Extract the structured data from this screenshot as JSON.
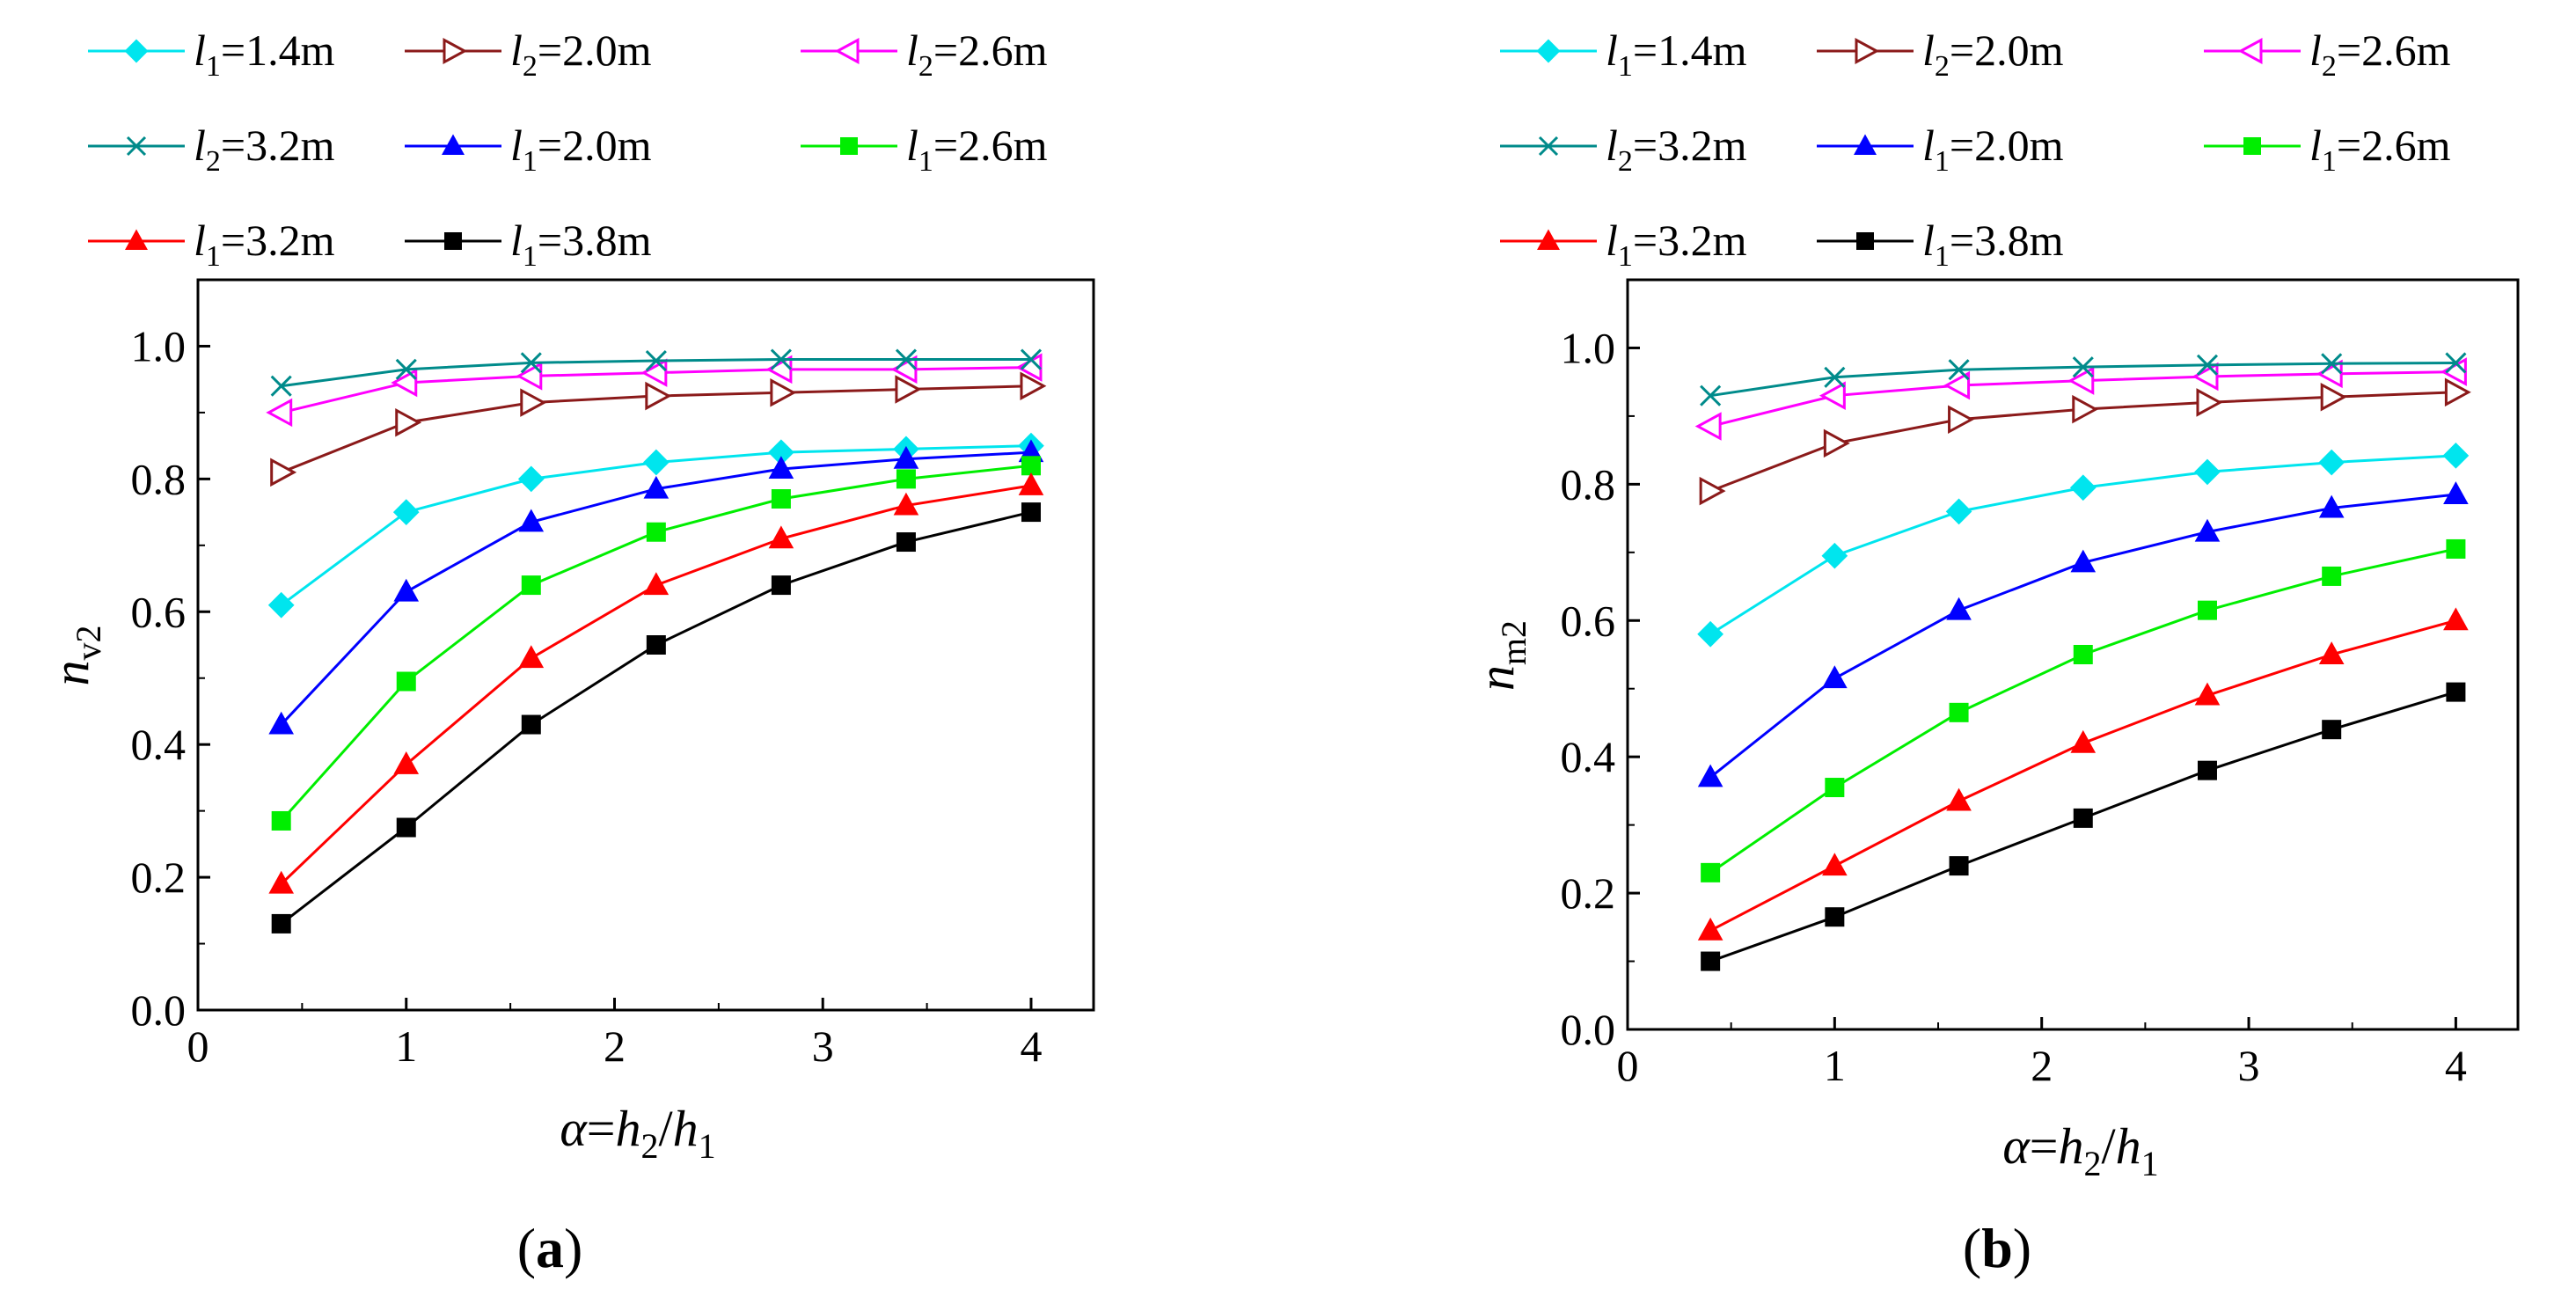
{
  "chart_data": [
    {
      "type": "line",
      "panel_label": "a",
      "xlabel": {
        "symbol": "α",
        "eq": "=",
        "num_var": "h",
        "num_sub": "2",
        "slash": "/",
        "den_var": "h",
        "den_sub": "1"
      },
      "ylabel": {
        "var": "n",
        "sub": "v2"
      },
      "xlim": [
        0,
        4.3
      ],
      "ylim": [
        0,
        1.1
      ],
      "xticks": [
        0,
        1,
        2,
        3,
        4
      ],
      "xtick_labels": [
        "0",
        "1",
        "2",
        "3",
        "4"
      ],
      "yticks": [
        0,
        0.2,
        0.4,
        0.6,
        0.8,
        1.0
      ],
      "ytick_labels": [
        "0.0",
        "0.2",
        "0.4",
        "0.6",
        "0.8",
        "1.0"
      ],
      "x": [
        0.4,
        1.0,
        1.6,
        2.2,
        2.8,
        3.4,
        4.0
      ],
      "series": [
        {
          "name": "l1=1.4m",
          "var": "l",
          "sub": "1",
          "value": "=1.4m",
          "color": "#00E5EE",
          "marker": "diamond",
          "values": [
            0.61,
            0.75,
            0.8,
            0.825,
            0.84,
            0.845,
            0.85
          ]
        },
        {
          "name": "l2=2.0m",
          "var": "l",
          "sub": "2",
          "value": "=2.0m",
          "color": "#8B1A1A",
          "marker": "tri-right-open",
          "values": [
            0.81,
            0.885,
            0.915,
            0.925,
            0.93,
            0.935,
            0.94
          ]
        },
        {
          "name": "l2=2.6m",
          "var": "l",
          "sub": "2",
          "value": "=2.6m",
          "color": "#FF00FF",
          "marker": "tri-left-open",
          "values": [
            0.9,
            0.945,
            0.955,
            0.96,
            0.965,
            0.965,
            0.968
          ]
        },
        {
          "name": "l2=3.2m",
          "var": "l",
          "sub": "2",
          "value": "=3.2m",
          "color": "#008B8B",
          "marker": "x",
          "values": [
            0.94,
            0.965,
            0.975,
            0.978,
            0.98,
            0.98,
            0.98
          ]
        },
        {
          "name": "l1=2.0m",
          "var": "l",
          "sub": "1",
          "value": "=2.0m",
          "color": "#0000FF",
          "marker": "triangle",
          "values": [
            0.43,
            0.63,
            0.735,
            0.785,
            0.815,
            0.83,
            0.84
          ]
        },
        {
          "name": "l1=2.6m",
          "var": "l",
          "sub": "1",
          "value": "=2.6m",
          "color": "#00EE00",
          "marker": "square",
          "values": [
            0.285,
            0.495,
            0.64,
            0.72,
            0.77,
            0.8,
            0.82
          ]
        },
        {
          "name": "l1=3.2m",
          "var": "l",
          "sub": "1",
          "value": "=3.2m",
          "color": "#FF0000",
          "marker": "triangle",
          "values": [
            0.19,
            0.37,
            0.53,
            0.64,
            0.71,
            0.76,
            0.79
          ]
        },
        {
          "name": "l1=3.8m",
          "var": "l",
          "sub": "1",
          "value": "=3.8m",
          "color": "#000000",
          "marker": "square",
          "values": [
            0.13,
            0.275,
            0.43,
            0.55,
            0.64,
            0.705,
            0.75
          ]
        }
      ]
    },
    {
      "type": "line",
      "panel_label": "b",
      "xlabel": {
        "symbol": "α",
        "eq": "=",
        "num_var": "h",
        "num_sub": "2",
        "slash": "/",
        "den_var": "h",
        "den_sub": "1"
      },
      "ylabel": {
        "var": "n",
        "sub": "m2"
      },
      "xlim": [
        0,
        4.3
      ],
      "ylim": [
        0,
        1.1
      ],
      "xticks": [
        0,
        1,
        2,
        3,
        4
      ],
      "xtick_labels": [
        "0",
        "1",
        "2",
        "3",
        "4"
      ],
      "yticks": [
        0,
        0.2,
        0.4,
        0.6,
        0.8,
        1.0
      ],
      "ytick_labels": [
        "0.0",
        "0.2",
        "0.4",
        "0.6",
        "0.8",
        "1.0"
      ],
      "x": [
        0.4,
        1.0,
        1.6,
        2.2,
        2.8,
        3.4,
        4.0
      ],
      "series": [
        {
          "name": "l1=1.4m",
          "var": "l",
          "sub": "1",
          "value": "=1.4m",
          "color": "#00E5EE",
          "marker": "diamond",
          "values": [
            0.58,
            0.695,
            0.76,
            0.795,
            0.818,
            0.832,
            0.842
          ]
        },
        {
          "name": "l2=2.0m",
          "var": "l",
          "sub": "2",
          "value": "=2.0m",
          "color": "#8B1A1A",
          "marker": "tri-right-open",
          "values": [
            0.79,
            0.86,
            0.895,
            0.91,
            0.92,
            0.928,
            0.935
          ]
        },
        {
          "name": "l2=2.6m",
          "var": "l",
          "sub": "2",
          "value": "=2.6m",
          "color": "#FF00FF",
          "marker": "tri-left-open",
          "values": [
            0.885,
            0.93,
            0.945,
            0.952,
            0.958,
            0.962,
            0.965
          ]
        },
        {
          "name": "l2=3.2m",
          "var": "l",
          "sub": "2",
          "value": "=3.2m",
          "color": "#008B8B",
          "marker": "x",
          "values": [
            0.93,
            0.957,
            0.968,
            0.972,
            0.975,
            0.977,
            0.978
          ]
        },
        {
          "name": "l1=2.0m",
          "var": "l",
          "sub": "1",
          "value": "=2.0m",
          "color": "#0000FF",
          "marker": "triangle",
          "values": [
            0.37,
            0.515,
            0.615,
            0.685,
            0.73,
            0.765,
            0.785
          ]
        },
        {
          "name": "l1=2.6m",
          "var": "l",
          "sub": "1",
          "value": "=2.6m",
          "color": "#00EE00",
          "marker": "square",
          "values": [
            0.23,
            0.355,
            0.465,
            0.55,
            0.615,
            0.665,
            0.705
          ]
        },
        {
          "name": "l1=3.2m",
          "var": "l",
          "sub": "1",
          "value": "=3.2m",
          "color": "#FF0000",
          "marker": "triangle",
          "values": [
            0.145,
            0.24,
            0.335,
            0.42,
            0.49,
            0.55,
            0.6
          ]
        },
        {
          "name": "l1=3.8m",
          "var": "l",
          "sub": "1",
          "value": "=3.8m",
          "color": "#000000",
          "marker": "square",
          "values": [
            0.1,
            0.165,
            0.24,
            0.31,
            0.38,
            0.44,
            0.495
          ]
        }
      ]
    }
  ]
}
